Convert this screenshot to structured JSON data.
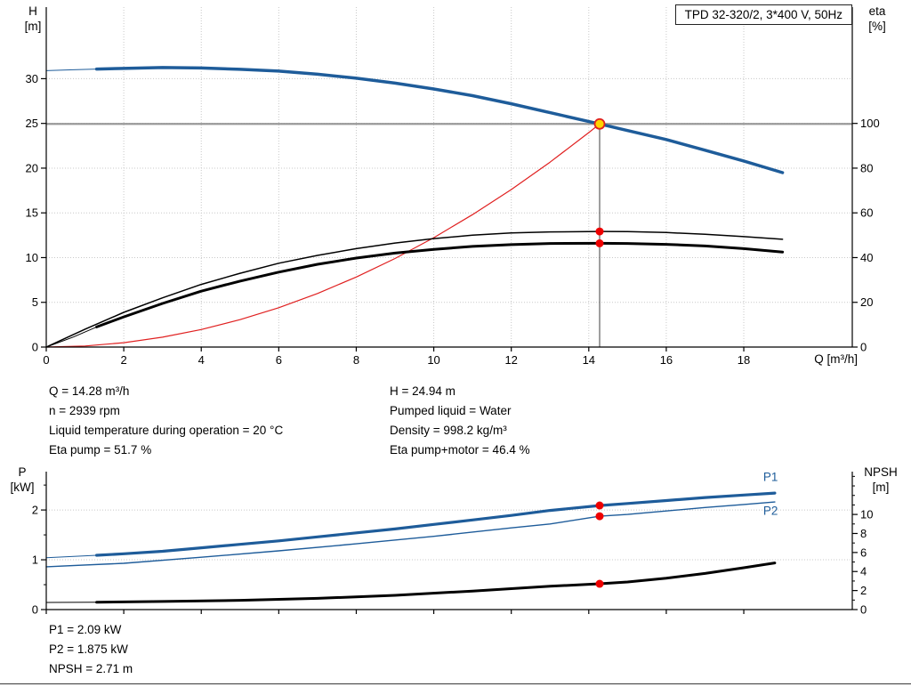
{
  "title_box": "TPD 32-320/2, 3*400 V, 50Hz",
  "colors": {
    "curve_blue": "#1e5c9a",
    "curve_black": "#000000",
    "system_red": "#e02020",
    "dot_red": "#ee0000",
    "op_fill": "#ffd400",
    "duty_gray": "#999999",
    "grid": "#c8c8c8"
  },
  "axis_titles": {
    "top_left_1": "H",
    "top_left_2": "[m]",
    "top_right_1": "eta",
    "top_right_2": "[%]",
    "x": "Q [m³/h]",
    "bottom_left_1": "P",
    "bottom_left_2": "[kW]",
    "bottom_right_1": "NPSH",
    "bottom_right_2": "[m]"
  },
  "info_block": {
    "left": [
      "Q = 14.28 m³/h",
      "n = 2939 rpm",
      "Liquid temperature during operation = 20 °C",
      "Eta pump = 51.7 %"
    ],
    "right": [
      "H = 24.94 m",
      "Pumped liquid = Water",
      "Density = 998.2 kg/m³",
      "Eta pump+motor = 46.4 %"
    ]
  },
  "footer_block": [
    "P1 = 2.09 kW",
    "P2 = 1.875 kW",
    "NPSH = 2.71 m"
  ],
  "chart_data": [
    {
      "type": "line",
      "name": "hq-eta-chart",
      "layout": {
        "margins": {
          "l": 52,
          "r": 66,
          "t": 8,
          "b": 30
        },
        "x_grid": true,
        "y_grid": true,
        "grid_color": "#c8c8c8",
        "x_show_labels": true
      },
      "x_axis": {
        "range": [
          0,
          20.8
        ],
        "ticks": [
          0,
          2,
          4,
          6,
          8,
          10,
          12,
          14,
          16,
          18
        ]
      },
      "left_axis": {
        "range": [
          0,
          38
        ],
        "ticks": [
          0,
          5,
          10,
          15,
          20,
          25,
          30
        ]
      },
      "right_axis": {
        "range": [
          0,
          152
        ],
        "ticks": [
          0,
          20,
          40,
          60,
          80,
          100
        ]
      },
      "guides": [
        {
          "type": "h",
          "v": 24.94,
          "axis": "left",
          "color": "#999999",
          "width": 2.2
        },
        {
          "type": "v",
          "q": 14.28,
          "v0": 0,
          "v1": 24.94,
          "axis": "left",
          "color": "#404040",
          "width": 1
        }
      ],
      "series": [
        {
          "name": "system-curve",
          "axis": "left",
          "color": "#e02020",
          "width": 1.2,
          "points": [
            [
              0,
              0
            ],
            [
              1,
              0.12
            ],
            [
              2,
              0.49
            ],
            [
              3,
              1.1
            ],
            [
              4,
              1.96
            ],
            [
              5,
              3.06
            ],
            [
              6,
              4.4
            ],
            [
              7,
              5.99
            ],
            [
              8,
              7.83
            ],
            [
              9,
              9.9
            ],
            [
              10,
              12.23
            ],
            [
              11,
              14.8
            ],
            [
              12,
              17.61
            ],
            [
              13,
              20.67
            ],
            [
              14,
              23.97
            ],
            [
              14.28,
              24.94
            ]
          ]
        },
        {
          "name": "hq-curve-lead",
          "axis": "left",
          "color": "#1e5c9a",
          "width": 1,
          "points": [
            [
              0,
              30.9
            ],
            [
              0.7,
              31.0
            ],
            [
              1.3,
              31.08
            ]
          ]
        },
        {
          "name": "hq-curve",
          "axis": "left",
          "color": "#1e5c9a",
          "width": 3.5,
          "points": [
            [
              1.3,
              31.08
            ],
            [
              2,
              31.15
            ],
            [
              3,
              31.25
            ],
            [
              4,
              31.2
            ],
            [
              5,
              31.05
            ],
            [
              6,
              30.85
            ],
            [
              7,
              30.5
            ],
            [
              8,
              30.05
            ],
            [
              9,
              29.5
            ],
            [
              10,
              28.85
            ],
            [
              11,
              28.1
            ],
            [
              12,
              27.2
            ],
            [
              13,
              26.2
            ],
            [
              14.28,
              24.94
            ],
            [
              15,
              24.2
            ],
            [
              16,
              23.2
            ],
            [
              17,
              22.0
            ],
            [
              18,
              20.8
            ],
            [
              19,
              19.5
            ]
          ]
        },
        {
          "name": "eta-pump-curve",
          "axis": "right",
          "color": "#000000",
          "width": 1.5,
          "points": [
            [
              0,
              0
            ],
            [
              1,
              8
            ],
            [
              2,
              15.5
            ],
            [
              3,
              22
            ],
            [
              4,
              28
            ],
            [
              5,
              33
            ],
            [
              6,
              37.5
            ],
            [
              7,
              41
            ],
            [
              8,
              44
            ],
            [
              9,
              46.5
            ],
            [
              10,
              48.5
            ],
            [
              11,
              50
            ],
            [
              12,
              51
            ],
            [
              13,
              51.5
            ],
            [
              14.28,
              51.7
            ],
            [
              15,
              51.6
            ],
            [
              16,
              51.2
            ],
            [
              17,
              50.4
            ],
            [
              18,
              49.4
            ],
            [
              19,
              48.2
            ]
          ]
        },
        {
          "name": "eta-pump-motor-lead",
          "axis": "right",
          "color": "#000000",
          "width": 1,
          "points": [
            [
              0,
              0
            ],
            [
              0.7,
              4.5
            ],
            [
              1.3,
              9
            ]
          ]
        },
        {
          "name": "eta-pump-motor-curve",
          "axis": "right",
          "color": "#000000",
          "width": 3,
          "points": [
            [
              1.3,
              9
            ],
            [
              2,
              13.5
            ],
            [
              3,
              19.5
            ],
            [
              4,
              25
            ],
            [
              5,
              29.5
            ],
            [
              6,
              33.5
            ],
            [
              7,
              37
            ],
            [
              8,
              39.8
            ],
            [
              9,
              42
            ],
            [
              10,
              43.7
            ],
            [
              11,
              45
            ],
            [
              12,
              45.8
            ],
            [
              13,
              46.3
            ],
            [
              14.28,
              46.4
            ],
            [
              15,
              46.3
            ],
            [
              16,
              45.9
            ],
            [
              17,
              45.2
            ],
            [
              18,
              44
            ],
            [
              19,
              42.5
            ]
          ]
        }
      ],
      "dots": [
        {
          "q": 14.28,
          "v": 51.7,
          "axis": "right"
        },
        {
          "q": 14.28,
          "v": 46.4,
          "axis": "right"
        }
      ],
      "op_marker": {
        "q": 14.28,
        "v": 24.94,
        "axis": "left"
      }
    },
    {
      "type": "line",
      "name": "power-npsh-chart",
      "layout": {
        "margins": {
          "l": 52,
          "r": 66,
          "t": 10,
          "b": 35
        },
        "x_grid": false,
        "y_grid": true,
        "grid_color": "#c8c8c8",
        "x_show_labels": false
      },
      "x_axis": {
        "range": [
          0,
          20.8
        ],
        "ticks": [
          0,
          2,
          4,
          6,
          8,
          10,
          12,
          14,
          16,
          18
        ]
      },
      "left_axis": {
        "range": [
          0,
          2.77
        ],
        "ticks": [
          0,
          1,
          2
        ],
        "minor": [
          0.5,
          1.5,
          2.5
        ]
      },
      "right_axis": {
        "range": [
          0,
          14.5
        ],
        "ticks": [
          0,
          2,
          4,
          6,
          8,
          10
        ],
        "minor": [
          1,
          3,
          5,
          7,
          9,
          11,
          12,
          13,
          14
        ]
      },
      "guides": [],
      "series": [
        {
          "name": "p1-curve-lead",
          "axis": "left",
          "color": "#1e5c9a",
          "width": 1,
          "points": [
            [
              0,
              1.04
            ],
            [
              1.3,
              1.09
            ]
          ]
        },
        {
          "name": "p1-curve",
          "axis": "left",
          "color": "#1e5c9a",
          "width": 3.2,
          "points": [
            [
              1.3,
              1.09
            ],
            [
              2,
              1.12
            ],
            [
              3,
              1.17
            ],
            [
              4,
              1.24
            ],
            [
              5,
              1.31
            ],
            [
              6,
              1.38
            ],
            [
              7,
              1.46
            ],
            [
              8,
              1.54
            ],
            [
              9,
              1.62
            ],
            [
              10,
              1.71
            ],
            [
              11,
              1.8
            ],
            [
              12,
              1.89
            ],
            [
              13,
              1.99
            ],
            [
              14.28,
              2.09
            ],
            [
              15,
              2.13
            ],
            [
              16,
              2.19
            ],
            [
              17,
              2.25
            ],
            [
              18,
              2.3
            ],
            [
              18.8,
              2.34
            ]
          ]
        },
        {
          "name": "p2-curve",
          "axis": "left",
          "color": "#1e5c9a",
          "width": 1.4,
          "points": [
            [
              0,
              0.86
            ],
            [
              2,
              0.93
            ],
            [
              4,
              1.05
            ],
            [
              6,
              1.18
            ],
            [
              8,
              1.32
            ],
            [
              10,
              1.47
            ],
            [
              12,
              1.64
            ],
            [
              13,
              1.72
            ],
            [
              14.28,
              1.875
            ],
            [
              15,
              1.91
            ],
            [
              16,
              1.98
            ],
            [
              17,
              2.05
            ],
            [
              18,
              2.11
            ],
            [
              18.8,
              2.16
            ]
          ]
        },
        {
          "name": "npsh-curve-lead",
          "axis": "right",
          "color": "#000000",
          "width": 1,
          "points": [
            [
              0,
              0.75
            ],
            [
              1.3,
              0.78
            ]
          ]
        },
        {
          "name": "npsh-curve",
          "axis": "right",
          "color": "#000000",
          "width": 3,
          "points": [
            [
              1.3,
              0.78
            ],
            [
              3,
              0.85
            ],
            [
              5,
              0.97
            ],
            [
              7,
              1.18
            ],
            [
              9,
              1.5
            ],
            [
              11,
              1.95
            ],
            [
              12,
              2.2
            ],
            [
              13,
              2.45
            ],
            [
              14.28,
              2.71
            ],
            [
              15,
              2.9
            ],
            [
              16,
              3.3
            ],
            [
              17,
              3.8
            ],
            [
              18,
              4.4
            ],
            [
              18.8,
              4.9
            ]
          ]
        }
      ],
      "dots": [
        {
          "q": 14.28,
          "v": 2.09,
          "axis": "left"
        },
        {
          "q": 14.28,
          "v": 1.875,
          "axis": "left"
        },
        {
          "q": 14.28,
          "v": 2.71,
          "axis": "right"
        }
      ],
      "labels": [
        {
          "text": "P1",
          "q": 18.5,
          "v": 2.58,
          "axis": "left",
          "color": "#1e5c9a"
        },
        {
          "text": "P2",
          "q": 18.5,
          "v": 1.9,
          "axis": "left",
          "color": "#1e5c9a"
        }
      ]
    }
  ]
}
